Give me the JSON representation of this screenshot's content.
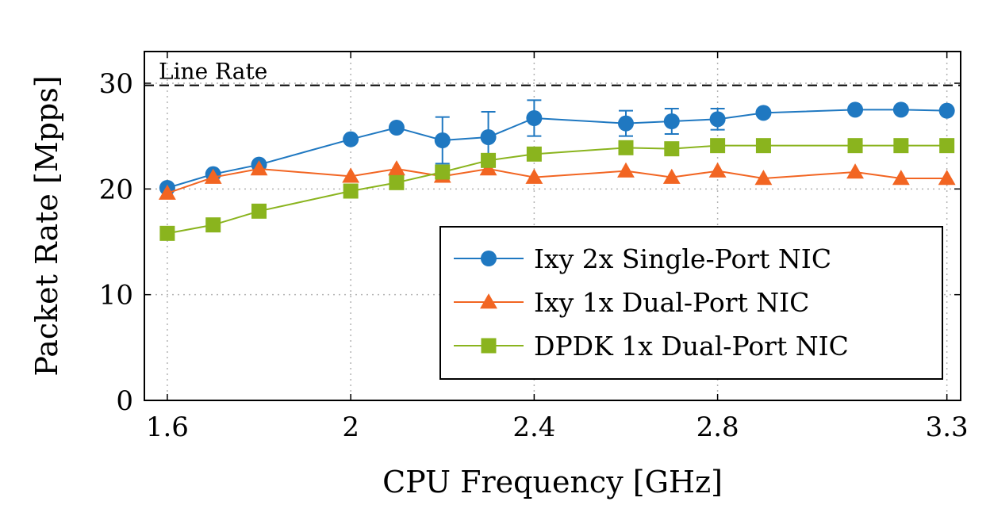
{
  "chart_data": {
    "type": "line",
    "xlabel": "CPU Frequency [GHz]",
    "ylabel": "Packet Rate [Mpps]",
    "xlim": [
      1.55,
      3.33
    ],
    "ylim": [
      0,
      33
    ],
    "xticks": [
      {
        "value": 1.6,
        "label": "1.6"
      },
      {
        "value": 2.0,
        "label": "2"
      },
      {
        "value": 2.4,
        "label": "2.4"
      },
      {
        "value": 2.8,
        "label": "2.8"
      },
      {
        "value": 3.3,
        "label": "3.3"
      }
    ],
    "yticks": [
      {
        "value": 0,
        "label": "0"
      },
      {
        "value": 10,
        "label": "10"
      },
      {
        "value": 20,
        "label": "20"
      },
      {
        "value": 30,
        "label": "30"
      }
    ],
    "grid": true,
    "legend_position": "bottom-right",
    "line_rate": {
      "value": 29.8,
      "label": "Line Rate"
    },
    "series": [
      {
        "name": "Ixy 2x Single-Port NIC",
        "color": "#1f78c1",
        "marker": "circle",
        "points": [
          {
            "x": 1.6,
            "y": 20.1
          },
          {
            "x": 1.7,
            "y": 21.4
          },
          {
            "x": 1.8,
            "y": 22.3
          },
          {
            "x": 2.0,
            "y": 24.7
          },
          {
            "x": 2.1,
            "y": 25.8
          },
          {
            "x": 2.2,
            "y": 24.6,
            "err": 2.2
          },
          {
            "x": 2.3,
            "y": 24.9,
            "err": 2.4
          },
          {
            "x": 2.4,
            "y": 26.7,
            "err": 1.7
          },
          {
            "x": 2.6,
            "y": 26.2,
            "err": 1.2
          },
          {
            "x": 2.7,
            "y": 26.4,
            "err": 1.2
          },
          {
            "x": 2.8,
            "y": 26.6,
            "err": 1.0
          },
          {
            "x": 2.9,
            "y": 27.2
          },
          {
            "x": 3.1,
            "y": 27.5
          },
          {
            "x": 3.2,
            "y": 27.5
          },
          {
            "x": 3.3,
            "y": 27.4
          }
        ]
      },
      {
        "name": "Ixy 1x Dual-Port NIC",
        "color": "#f26522",
        "marker": "triangle",
        "points": [
          {
            "x": 1.6,
            "y": 19.6
          },
          {
            "x": 1.7,
            "y": 21.1
          },
          {
            "x": 1.8,
            "y": 21.9
          },
          {
            "x": 2.0,
            "y": 21.2
          },
          {
            "x": 2.1,
            "y": 21.9
          },
          {
            "x": 2.2,
            "y": 21.2
          },
          {
            "x": 2.3,
            "y": 21.9
          },
          {
            "x": 2.4,
            "y": 21.1
          },
          {
            "x": 2.6,
            "y": 21.7
          },
          {
            "x": 2.7,
            "y": 21.1
          },
          {
            "x": 2.8,
            "y": 21.7
          },
          {
            "x": 2.9,
            "y": 21.0
          },
          {
            "x": 3.1,
            "y": 21.6
          },
          {
            "x": 3.2,
            "y": 21.0
          },
          {
            "x": 3.3,
            "y": 21.0
          }
        ]
      },
      {
        "name": "DPDK 1x Dual-Port NIC",
        "color": "#8ab41e",
        "marker": "square",
        "points": [
          {
            "x": 1.6,
            "y": 15.8
          },
          {
            "x": 1.7,
            "y": 16.6
          },
          {
            "x": 1.8,
            "y": 17.9
          },
          {
            "x": 2.0,
            "y": 19.8
          },
          {
            "x": 2.1,
            "y": 20.6
          },
          {
            "x": 2.2,
            "y": 21.6
          },
          {
            "x": 2.3,
            "y": 22.7
          },
          {
            "x": 2.4,
            "y": 23.3
          },
          {
            "x": 2.6,
            "y": 23.9
          },
          {
            "x": 2.7,
            "y": 23.8
          },
          {
            "x": 2.8,
            "y": 24.1
          },
          {
            "x": 2.9,
            "y": 24.1
          },
          {
            "x": 3.1,
            "y": 24.1
          },
          {
            "x": 3.2,
            "y": 24.1
          },
          {
            "x": 3.3,
            "y": 24.1
          }
        ]
      }
    ]
  }
}
